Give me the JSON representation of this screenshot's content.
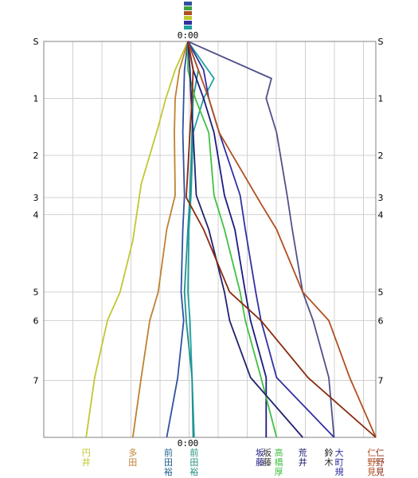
{
  "chart_data": {
    "type": "line",
    "title": "",
    "xlabel": "",
    "ylabel": "",
    "top_time_label": "0:00",
    "bottom_time_label": "0:00",
    "y_tick_labels": [
      "S",
      "1",
      "2",
      "3",
      "4",
      "5",
      "6",
      "7"
    ],
    "y_tick_values": [
      0,
      1,
      2,
      3,
      4,
      5,
      6,
      7
    ],
    "y_ticks_data": [
      0,
      1,
      2,
      2.74,
      3.04,
      4.4,
      4.9,
      5.95
    ],
    "y_range": [
      0,
      6.95
    ],
    "x_range": [
      -17,
      18
    ],
    "grid": true,
    "legend": "bottom, stacked names under each final position",
    "series": [
      {
        "name": "円井",
        "color": "#c0c830",
        "x": [
          0,
          -1.5,
          -2.6,
          -3.5,
          -5.5,
          -6.5,
          -8,
          -9.5,
          -11,
          -12
        ],
        "y": [
          0,
          0.5,
          1,
          1.5,
          2.5,
          3.5,
          4.4,
          4.9,
          5.9,
          6.95
        ]
      },
      {
        "name": "多田",
        "color": "#c08030",
        "x": [
          0,
          -1,
          -1.5,
          -1.6,
          -1.5,
          -2.5,
          -3.5,
          -4.5,
          -5.5,
          -6.5
        ],
        "y": [
          0,
          0.5,
          1,
          1.6,
          2.7,
          3.3,
          4.4,
          4.9,
          5.9,
          6.95
        ]
      },
      {
        "name": "前田裕",
        "color": "#3050a0",
        "x": [
          0,
          -0.4,
          -0.5,
          -0.6,
          -0.4,
          -0.6,
          -0.8,
          -0.5,
          -1.2,
          -2.5
        ],
        "y": [
          0,
          0.5,
          1,
          1.6,
          2.7,
          3.3,
          4.4,
          4.9,
          5.9,
          6.95
        ]
      },
      {
        "name": "前田裕",
        "color": "#20a0a0",
        "x": [
          0,
          2.5,
          1.5,
          0.5,
          0.3,
          0.1,
          0,
          0.2,
          0.4,
          0.6
        ],
        "y": [
          0,
          0.65,
          1,
          1.6,
          2.7,
          3.3,
          4.4,
          4.9,
          5.9,
          6.95
        ]
      },
      {
        "name": "前田裕",
        "color": "#209090",
        "x": [
          0,
          1,
          0.5,
          0.4,
          0.2,
          0,
          -0.4,
          -0.2,
          0.4,
          0.5
        ],
        "y": [
          0,
          0.5,
          1,
          1.6,
          2.7,
          3.3,
          4.4,
          4.9,
          5.9,
          6.95
        ]
      },
      {
        "name": "坂藤",
        "color": "#1a1a80",
        "x": [
          0,
          0.5,
          1.5,
          2.5,
          3.5,
          4.5,
          5.5,
          6,
          7.5,
          7.5
        ],
        "y": [
          0,
          0.5,
          1,
          1.6,
          2.7,
          3.3,
          4.4,
          4.9,
          5.9,
          6.95
        ]
      },
      {
        "name": "高橋厚",
        "color": "#40c040",
        "x": [
          0,
          0,
          0.7,
          2,
          2.5,
          3.5,
          5,
          5.5,
          7,
          8.5
        ],
        "y": [
          0,
          0.5,
          1,
          1.6,
          2.7,
          3.3,
          4.4,
          4.9,
          5.9,
          6.95
        ]
      },
      {
        "name": "荒井",
        "color": "#202070",
        "x": [
          0,
          0.2,
          0.3,
          0.5,
          0.8,
          2,
          3.5,
          4,
          6,
          11
        ],
        "y": [
          0,
          0.5,
          1,
          1.6,
          2.7,
          3.3,
          4.4,
          4.9,
          5.9,
          6.95
        ]
      },
      {
        "name": "鈴木",
        "color": "#50508a",
        "x": [
          0,
          8,
          7.5,
          8.5,
          9.5,
          10,
          11,
          12,
          13.5,
          14
        ],
        "y": [
          0,
          0.65,
          1,
          1.6,
          2.7,
          3.3,
          4.4,
          4.9,
          5.9,
          6.95
        ]
      },
      {
        "name": "大町規",
        "color": "#3030a0",
        "x": [
          0,
          1.5,
          2,
          3,
          5,
          5.5,
          6.5,
          7,
          8.5,
          14
        ],
        "y": [
          0,
          0.5,
          1,
          1.6,
          2.7,
          3.3,
          4.4,
          4.9,
          5.9,
          6.95
        ]
      },
      {
        "name": "仁野見",
        "color": "#b05020",
        "x": [
          0,
          1,
          2,
          3,
          7,
          8.5,
          11,
          13.5,
          15.5,
          18
        ],
        "y": [
          0,
          0.5,
          1,
          1.6,
          2.85,
          3.3,
          4.4,
          4.9,
          5.9,
          6.95
        ]
      },
      {
        "name": "仁野見",
        "color": "#8a2a10",
        "x": [
          0,
          0.5,
          0.4,
          0.2,
          -0.2,
          1.5,
          4,
          7,
          11.5,
          18
        ],
        "y": [
          0,
          0.5,
          1,
          1.6,
          2.74,
          3.3,
          4.4,
          4.9,
          5.9,
          6.95
        ]
      }
    ],
    "bottom_labels": [
      {
        "text": "円井",
        "color": "#c0c830",
        "x": -12
      },
      {
        "text": "多田",
        "color": "#c08030",
        "x": -6.5
      },
      {
        "text": "前田裕",
        "color": "#206090",
        "x": -2.3
      },
      {
        "text": "前田裕",
        "color": "#209080",
        "x": 0.6
      },
      {
        "text": "坂藤",
        "color": "#1a1a80",
        "x": 6.9
      },
      {
        "text": "坂藤",
        "color": "#303030",
        "x": 7.6
      },
      {
        "text": "高橋厚",
        "color": "#40c040",
        "x": 8.7
      },
      {
        "text": "荒井",
        "color": "#202070",
        "x": 11
      },
      {
        "text": "鈴木",
        "color": "#202020",
        "x": 13.5
      },
      {
        "text": "大町規",
        "color": "#3030a0",
        "x": 14.5
      },
      {
        "text": "仁野見",
        "color": "#b05020",
        "x": 17.6
      },
      {
        "text": "仁野見",
        "color": "#8a2a10",
        "x": 18.4
      }
    ],
    "top_marker_colors": [
      "#3050a0",
      "#40a040",
      "#b05020",
      "#c0c830",
      "#3030a0",
      "#20a0a0"
    ]
  }
}
